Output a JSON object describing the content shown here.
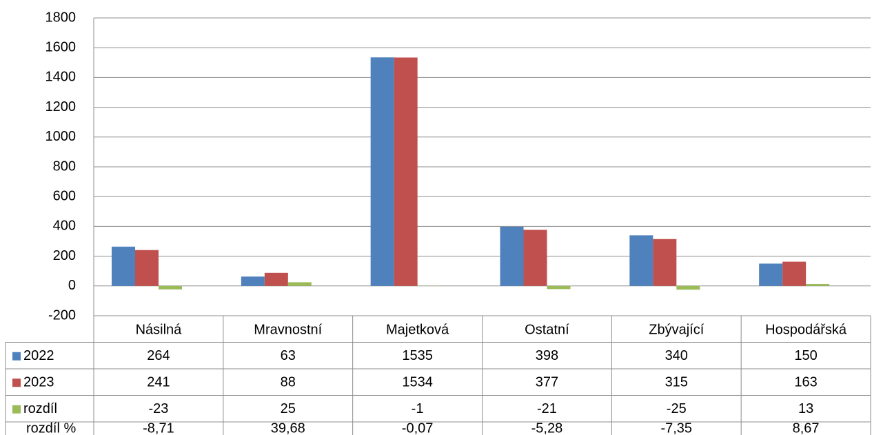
{
  "chart_data": {
    "type": "bar",
    "categories": [
      "Násilná",
      "Mravnostní",
      "Majetková",
      "Ostatní",
      "Zbývající",
      "Hospodářská"
    ],
    "series": [
      {
        "name": "2022",
        "color": "#4f81bd",
        "values": [
          264,
          63,
          1535,
          398,
          340,
          150
        ]
      },
      {
        "name": "2023",
        "color": "#c0504d",
        "values": [
          241,
          88,
          1534,
          377,
          315,
          163
        ]
      },
      {
        "name": "rozdíl",
        "color": "#9bbb59",
        "values": [
          -23,
          25,
          -1,
          -21,
          -25,
          13
        ]
      }
    ],
    "extra_rows": [
      {
        "name": "rozdíl %",
        "values": [
          -8.71,
          39.68,
          -0.07,
          -5.28,
          -7.35,
          8.67
        ],
        "value_labels": [
          "-8,71",
          "39,68",
          "-0,07",
          "-5,28",
          "-7,35",
          "8,67"
        ]
      }
    ],
    "ylim": [
      -200,
      1800
    ],
    "yticks": [
      -200,
      0,
      200,
      400,
      600,
      800,
      1000,
      1200,
      1400,
      1600,
      1800
    ],
    "grid": true
  }
}
